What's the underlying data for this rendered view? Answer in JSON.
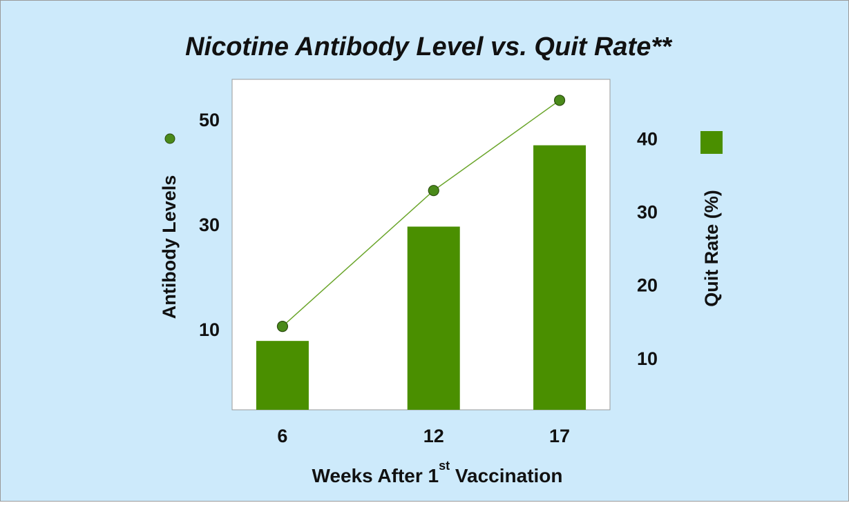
{
  "chart_data": {
    "type": "bar_line",
    "title": "Nicotine Antibody Level vs. Quit Rate**",
    "x_label": [
      "Weeks After 1",
      "st",
      " Vaccination"
    ],
    "x": [
      6,
      12,
      17
    ],
    "xlim": [
      4,
      19
    ],
    "xticks": [
      6,
      12,
      17
    ],
    "ylim": [
      -5,
      58
    ],
    "yticks": [
      10,
      30,
      50
    ],
    "y2lim": [
      3.2,
      48.3
    ],
    "y2ticks": [
      10,
      20,
      30,
      40
    ],
    "grid": false,
    "series": [
      {
        "name": "Antibody Levels",
        "type": "line",
        "axis": "y",
        "color": "#4a8a1a",
        "values": [
          10.9,
          36.8,
          54.0
        ]
      },
      {
        "name": "Quit Rate (%)",
        "type": "bar",
        "axis": "y2",
        "color": "#4a8f00",
        "values": [
          12.6,
          28.2,
          39.3
        ]
      }
    ]
  }
}
